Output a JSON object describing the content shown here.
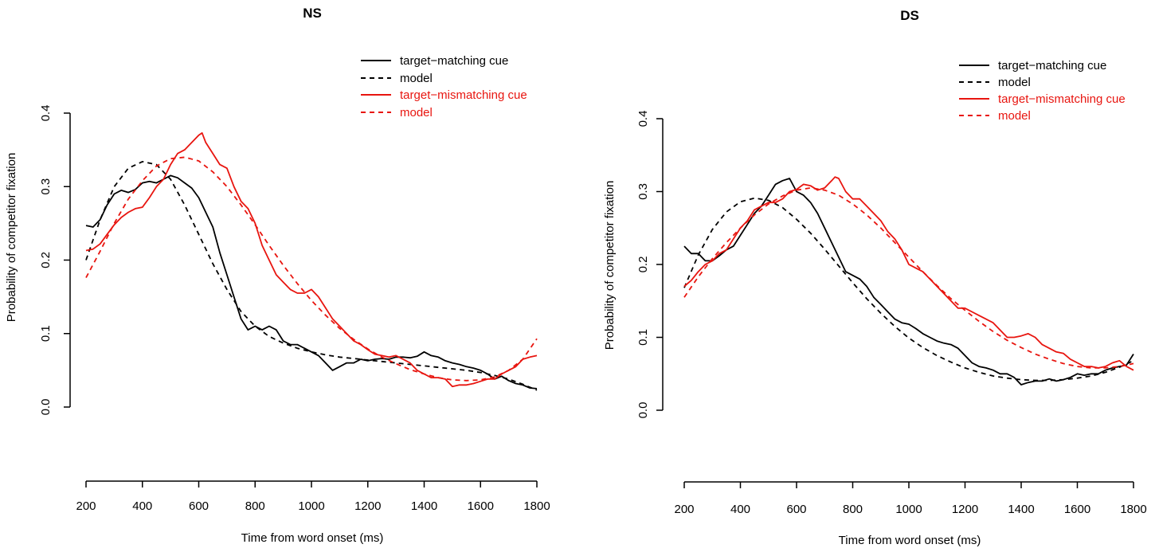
{
  "chart_data": [
    {
      "type": "line",
      "title": "NS",
      "xlabel": "Time from word onset (ms)",
      "ylabel": "Probability of competitor fixation",
      "xlim": [
        200,
        1800
      ],
      "ylim": [
        0,
        0.4
      ],
      "xticks": [
        "200",
        "400",
        "600",
        "800",
        "1000",
        "1200",
        "1400",
        "1600",
        "1800"
      ],
      "yticks": [
        "0.0",
        "0.1",
        "0.2",
        "0.3",
        "0.4"
      ],
      "legend": "top-right",
      "series": [
        {
          "name": "target−matching cue",
          "color": "#000000",
          "dashed": false,
          "x": [
            200,
            225,
            250,
            275,
            300,
            325,
            350,
            375,
            400,
            425,
            450,
            475,
            500,
            525,
            550,
            575,
            600,
            625,
            650,
            675,
            700,
            725,
            750,
            775,
            800,
            825,
            850,
            875,
            900,
            925,
            950,
            975,
            1000,
            1025,
            1050,
            1075,
            1100,
            1125,
            1150,
            1175,
            1200,
            1225,
            1250,
            1275,
            1300,
            1325,
            1350,
            1375,
            1400,
            1425,
            1450,
            1475,
            1500,
            1525,
            1550,
            1575,
            1600,
            1625,
            1650,
            1675,
            1700,
            1725,
            1750,
            1775,
            1800
          ],
          "y": [
            0.247,
            0.245,
            0.255,
            0.275,
            0.29,
            0.295,
            0.292,
            0.296,
            0.305,
            0.307,
            0.305,
            0.31,
            0.315,
            0.312,
            0.305,
            0.298,
            0.285,
            0.265,
            0.245,
            0.21,
            0.18,
            0.15,
            0.12,
            0.105,
            0.11,
            0.105,
            0.11,
            0.105,
            0.09,
            0.085,
            0.085,
            0.08,
            0.075,
            0.07,
            0.06,
            0.05,
            0.055,
            0.06,
            0.06,
            0.065,
            0.063,
            0.065,
            0.066,
            0.065,
            0.068,
            0.068,
            0.067,
            0.069,
            0.075,
            0.07,
            0.068,
            0.063,
            0.06,
            0.058,
            0.055,
            0.053,
            0.05,
            0.045,
            0.038,
            0.042,
            0.036,
            0.032,
            0.03,
            0.026,
            0.025
          ]
        },
        {
          "name": "model",
          "color": "#000000",
          "dashed": true,
          "x": [
            200,
            250,
            300,
            350,
            400,
            450,
            500,
            550,
            600,
            650,
            700,
            750,
            800,
            850,
            900,
            950,
            1000,
            1050,
            1100,
            1150,
            1200,
            1250,
            1300,
            1350,
            1400,
            1450,
            1500,
            1550,
            1600,
            1650,
            1700,
            1750,
            1800
          ],
          "y": [
            0.2,
            0.255,
            0.3,
            0.325,
            0.334,
            0.33,
            0.31,
            0.275,
            0.235,
            0.195,
            0.16,
            0.13,
            0.11,
            0.096,
            0.087,
            0.08,
            0.075,
            0.071,
            0.068,
            0.066,
            0.064,
            0.062,
            0.06,
            0.058,
            0.056,
            0.054,
            0.052,
            0.05,
            0.047,
            0.043,
            0.038,
            0.031,
            0.023
          ]
        },
        {
          "name": "target−mismatching cue",
          "color": "#e8150f",
          "dashed": false,
          "x": [
            200,
            225,
            250,
            275,
            300,
            325,
            350,
            375,
            400,
            425,
            450,
            475,
            500,
            525,
            550,
            575,
            600,
            612,
            625,
            650,
            675,
            700,
            725,
            750,
            775,
            800,
            825,
            850,
            875,
            900,
            925,
            950,
            975,
            1000,
            1025,
            1050,
            1075,
            1100,
            1125,
            1150,
            1175,
            1200,
            1225,
            1250,
            1275,
            1300,
            1325,
            1350,
            1375,
            1400,
            1425,
            1450,
            1475,
            1500,
            1525,
            1550,
            1575,
            1600,
            1625,
            1650,
            1675,
            1700,
            1725,
            1750,
            1775,
            1800
          ],
          "y": [
            0.213,
            0.215,
            0.222,
            0.235,
            0.248,
            0.258,
            0.265,
            0.27,
            0.272,
            0.285,
            0.3,
            0.31,
            0.33,
            0.345,
            0.35,
            0.36,
            0.37,
            0.373,
            0.36,
            0.345,
            0.33,
            0.325,
            0.3,
            0.28,
            0.27,
            0.25,
            0.22,
            0.2,
            0.18,
            0.17,
            0.16,
            0.155,
            0.155,
            0.16,
            0.15,
            0.135,
            0.12,
            0.11,
            0.1,
            0.09,
            0.085,
            0.078,
            0.072,
            0.07,
            0.068,
            0.07,
            0.065,
            0.06,
            0.05,
            0.045,
            0.04,
            0.04,
            0.038,
            0.028,
            0.03,
            0.03,
            0.032,
            0.035,
            0.038,
            0.038,
            0.045,
            0.05,
            0.055,
            0.065,
            0.068,
            0.07
          ]
        },
        {
          "name": "model",
          "color": "#e8150f",
          "dashed": true,
          "x": [
            200,
            250,
            300,
            350,
            400,
            450,
            500,
            550,
            600,
            650,
            700,
            750,
            800,
            850,
            900,
            950,
            1000,
            1050,
            1100,
            1150,
            1200,
            1250,
            1300,
            1350,
            1400,
            1450,
            1500,
            1550,
            1600,
            1650,
            1700,
            1750,
            1800
          ],
          "y": [
            0.176,
            0.212,
            0.25,
            0.283,
            0.308,
            0.328,
            0.338,
            0.34,
            0.335,
            0.32,
            0.3,
            0.275,
            0.248,
            0.22,
            0.193,
            0.168,
            0.145,
            0.125,
            0.107,
            0.092,
            0.079,
            0.068,
            0.059,
            0.051,
            0.045,
            0.04,
            0.037,
            0.036,
            0.037,
            0.041,
            0.05,
            0.065,
            0.093
          ]
        }
      ]
    },
    {
      "type": "line",
      "title": "DS",
      "xlabel": "Time from word onset (ms)",
      "ylabel": "Probability of competitor fixation",
      "xlim": [
        200,
        1800
      ],
      "ylim": [
        0,
        0.4
      ],
      "xticks": [
        "200",
        "400",
        "600",
        "800",
        "1000",
        "1200",
        "1400",
        "1600",
        "1800"
      ],
      "yticks": [
        "0.0",
        "0.1",
        "0.2",
        "0.3",
        "0.4"
      ],
      "legend": "top-right",
      "series": [
        {
          "name": "target−matching cue",
          "color": "#000000",
          "dashed": false,
          "x": [
            200,
            225,
            250,
            275,
            300,
            325,
            350,
            375,
            400,
            425,
            450,
            475,
            500,
            525,
            550,
            575,
            600,
            625,
            650,
            675,
            700,
            725,
            750,
            775,
            800,
            825,
            850,
            875,
            900,
            925,
            950,
            975,
            1000,
            1025,
            1050,
            1075,
            1100,
            1125,
            1150,
            1175,
            1200,
            1225,
            1250,
            1275,
            1300,
            1325,
            1350,
            1375,
            1400,
            1425,
            1450,
            1475,
            1500,
            1525,
            1550,
            1575,
            1600,
            1625,
            1650,
            1675,
            1700,
            1725,
            1750,
            1775,
            1800
          ],
          "y": [
            0.225,
            0.215,
            0.215,
            0.205,
            0.205,
            0.212,
            0.22,
            0.225,
            0.24,
            0.255,
            0.27,
            0.28,
            0.295,
            0.31,
            0.315,
            0.318,
            0.3,
            0.295,
            0.285,
            0.27,
            0.25,
            0.23,
            0.21,
            0.19,
            0.185,
            0.18,
            0.17,
            0.155,
            0.145,
            0.135,
            0.125,
            0.12,
            0.118,
            0.112,
            0.105,
            0.1,
            0.095,
            0.092,
            0.09,
            0.085,
            0.075,
            0.065,
            0.06,
            0.058,
            0.055,
            0.05,
            0.05,
            0.045,
            0.035,
            0.038,
            0.04,
            0.04,
            0.043,
            0.04,
            0.042,
            0.045,
            0.05,
            0.048,
            0.05,
            0.05,
            0.055,
            0.058,
            0.06,
            0.062,
            0.077
          ]
        },
        {
          "name": "model",
          "color": "#000000",
          "dashed": true,
          "x": [
            200,
            250,
            300,
            350,
            400,
            450,
            500,
            550,
            600,
            650,
            700,
            750,
            800,
            850,
            900,
            950,
            1000,
            1050,
            1100,
            1150,
            1200,
            1250,
            1300,
            1350,
            1400,
            1450,
            1500,
            1550,
            1600,
            1650,
            1700,
            1750,
            1800
          ],
          "y": [
            0.168,
            0.213,
            0.248,
            0.272,
            0.286,
            0.291,
            0.288,
            0.278,
            0.262,
            0.243,
            0.221,
            0.198,
            0.175,
            0.153,
            0.133,
            0.115,
            0.099,
            0.086,
            0.075,
            0.066,
            0.058,
            0.052,
            0.047,
            0.044,
            0.042,
            0.041,
            0.041,
            0.042,
            0.044,
            0.047,
            0.052,
            0.059,
            0.068
          ]
        },
        {
          "name": "target−mismatching cue",
          "color": "#e8150f",
          "dashed": false,
          "x": [
            200,
            225,
            250,
            275,
            300,
            325,
            350,
            375,
            400,
            425,
            450,
            475,
            500,
            525,
            550,
            575,
            600,
            625,
            650,
            675,
            700,
            725,
            737,
            750,
            775,
            800,
            825,
            850,
            875,
            900,
            925,
            950,
            975,
            1000,
            1025,
            1050,
            1075,
            1100,
            1125,
            1150,
            1175,
            1200,
            1225,
            1250,
            1275,
            1300,
            1325,
            1350,
            1375,
            1400,
            1425,
            1450,
            1475,
            1500,
            1525,
            1550,
            1575,
            1600,
            1625,
            1650,
            1675,
            1700,
            1725,
            1750,
            1775,
            1800
          ],
          "y": [
            0.17,
            0.178,
            0.19,
            0.2,
            0.205,
            0.215,
            0.22,
            0.235,
            0.25,
            0.26,
            0.275,
            0.28,
            0.285,
            0.285,
            0.29,
            0.3,
            0.303,
            0.31,
            0.308,
            0.302,
            0.305,
            0.315,
            0.32,
            0.318,
            0.3,
            0.29,
            0.29,
            0.28,
            0.27,
            0.26,
            0.245,
            0.235,
            0.22,
            0.2,
            0.195,
            0.19,
            0.18,
            0.17,
            0.16,
            0.15,
            0.14,
            0.14,
            0.135,
            0.13,
            0.125,
            0.12,
            0.11,
            0.1,
            0.1,
            0.102,
            0.105,
            0.1,
            0.09,
            0.085,
            0.08,
            0.078,
            0.07,
            0.065,
            0.06,
            0.06,
            0.058,
            0.06,
            0.065,
            0.068,
            0.06,
            0.055
          ]
        },
        {
          "name": "model",
          "color": "#e8150f",
          "dashed": true,
          "x": [
            200,
            250,
            300,
            350,
            400,
            450,
            500,
            550,
            600,
            650,
            700,
            750,
            800,
            850,
            900,
            950,
            1000,
            1050,
            1100,
            1150,
            1200,
            1250,
            1300,
            1350,
            1400,
            1450,
            1500,
            1550,
            1600,
            1650,
            1700,
            1750,
            1800
          ],
          "y": [
            0.155,
            0.183,
            0.208,
            0.23,
            0.25,
            0.268,
            0.283,
            0.294,
            0.302,
            0.305,
            0.302,
            0.295,
            0.283,
            0.268,
            0.25,
            0.23,
            0.21,
            0.19,
            0.171,
            0.153,
            0.137,
            0.122,
            0.108,
            0.096,
            0.086,
            0.077,
            0.07,
            0.064,
            0.06,
            0.058,
            0.058,
            0.06,
            0.064
          ]
        }
      ]
    }
  ]
}
